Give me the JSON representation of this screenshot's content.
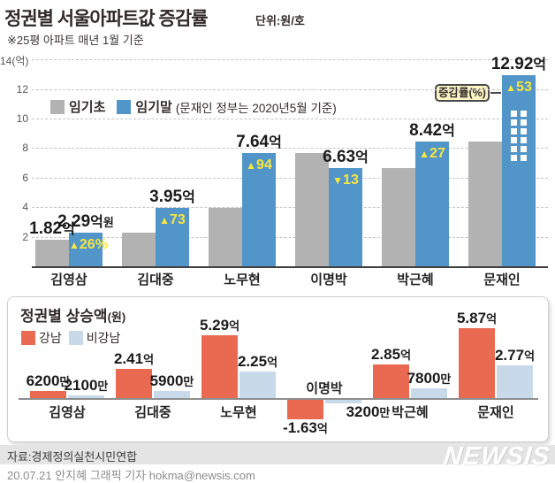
{
  "header": {
    "title": "정권별 서울아파트값 증감률",
    "unit": "단위:원/호",
    "note": "※25평 아파트 매년 1월 기준"
  },
  "top_chart": {
    "legend_start": "임기초",
    "legend_end": "임기말",
    "legend_note": "(문재인 정부는 2020년5월 기준)",
    "callout": "증감률(%)"
  },
  "bottom_chart": {
    "title": "정권별 상승액",
    "title_unit": "(원)",
    "legend_gangnam": "강남",
    "legend_non_gangnam": "비강남"
  },
  "footer": {
    "source": "자료:경제정의실천시민연합",
    "byline": "20.07.21 안지혜 그래픽 기자 hokma@newsis.com",
    "logo": "NEWSIS"
  },
  "colors": {
    "term_start_gray": "#b2b2b2",
    "term_end_blue": "#5295c9",
    "gangnam_red": "#e96a50",
    "non_gangnam_blue": "#c8d9e9",
    "pct_yellow": "#f7e63d",
    "callout_bg": "#fbf6c3"
  },
  "chart_data": [
    {
      "type": "bar",
      "title": "정권별 서울아파트값 증감률",
      "ylabel": "억",
      "ylim": [
        0,
        14
      ],
      "grid": true,
      "legend_position": "top-left-inside",
      "categories": [
        "김영삼",
        "김대중",
        "노무현",
        "이명박",
        "박근혜",
        "문재인"
      ],
      "series": [
        {
          "name": "임기초",
          "values": [
            1.82,
            2.29,
            3.95,
            7.64,
            6.63,
            8.42
          ]
        },
        {
          "name": "임기말",
          "values": [
            2.29,
            3.95,
            7.64,
            6.63,
            8.42,
            12.92
          ]
        }
      ],
      "start_value_label": {
        "num": "1.82",
        "unit": "억"
      },
      "end_value_labels": [
        {
          "num": "2.29",
          "unit": "억",
          "extra": "원"
        },
        {
          "num": "3.95",
          "unit": "억"
        },
        {
          "num": "7.64",
          "unit": "억"
        },
        {
          "num": "6.63",
          "unit": "억"
        },
        {
          "num": "8.42",
          "unit": "억"
        },
        {
          "num": "12.92",
          "unit": "억"
        }
      ],
      "pct_changes": [
        {
          "dir": "up",
          "text": "26%"
        },
        {
          "dir": "up",
          "text": "73"
        },
        {
          "dir": "up",
          "text": "94"
        },
        {
          "dir": "down",
          "text": "13"
        },
        {
          "dir": "up",
          "text": "27"
        },
        {
          "dir": "up",
          "text": "53"
        }
      ],
      "yticks": [
        {
          "v": 2,
          "label": "2"
        },
        {
          "v": 4,
          "label": "4"
        },
        {
          "v": 6,
          "label": "6"
        },
        {
          "v": 8,
          "label": "8"
        },
        {
          "v": 10,
          "label": "10"
        },
        {
          "v": 12,
          "label": "12"
        },
        {
          "v": 14,
          "label": "14(억)"
        }
      ],
      "broken_bar_pattern": true
    },
    {
      "type": "bar",
      "title": "정권별 상승액(원)",
      "grid": false,
      "categories": [
        "김영삼",
        "김대중",
        "노무현",
        "이명박",
        "박근혜",
        "문재인"
      ],
      "series": [
        {
          "name": "강남",
          "values": [
            0.62,
            2.41,
            5.29,
            -1.63,
            2.85,
            5.87
          ],
          "labels": [
            {
              "num": "6200",
              "unit": "만"
            },
            {
              "num": "2.41",
              "unit": "억"
            },
            {
              "num": "5.29",
              "unit": "억"
            },
            {
              "num": "-1.63",
              "unit": "억"
            },
            {
              "num": "2.85",
              "unit": "억"
            },
            {
              "num": "5.87",
              "unit": "억"
            }
          ]
        },
        {
          "name": "비강남",
          "values": [
            0.21,
            0.59,
            2.25,
            -0.32,
            0.78,
            2.77
          ],
          "labels": [
            {
              "num": "2100",
              "unit": "만"
            },
            {
              "num": "5900",
              "unit": "만"
            },
            {
              "num": "2.25",
              "unit": "억"
            },
            {
              "num": "3200",
              "unit": "만"
            },
            {
              "num": "7800",
              "unit": "만"
            },
            {
              "num": "2.77",
              "unit": "억"
            }
          ]
        }
      ]
    }
  ]
}
